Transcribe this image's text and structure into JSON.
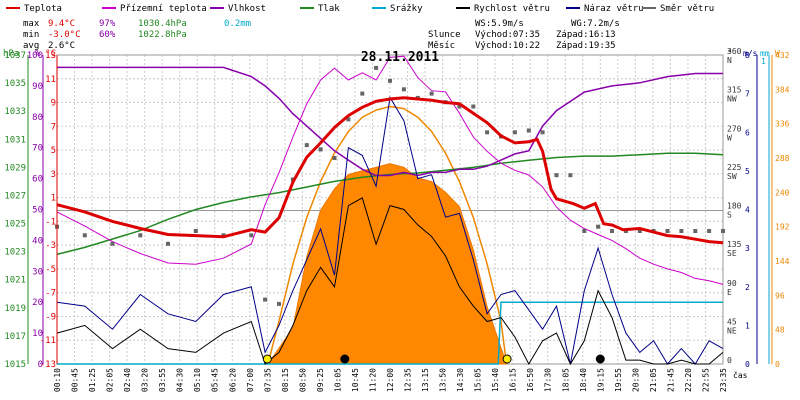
{
  "chart_data": {
    "type": "line",
    "title": "28.11.2011",
    "xlabel": "čas",
    "legend": [
      {
        "name": "Teplota",
        "color": "#dd0000"
      },
      {
        "name": "Přízemní teplota",
        "color": "#cc00cc"
      },
      {
        "name": "Vlhkost",
        "color": "#8800aa"
      },
      {
        "name": "Tlak",
        "color": "#228822"
      },
      {
        "name": "Srážky",
        "color": "#00aacc"
      },
      {
        "name": "Rychlost větru",
        "color": "#000000"
      },
      {
        "name": "Náraz větru",
        "color": "#000088"
      },
      {
        "name": "Směr větru",
        "color": "#666666"
      }
    ],
    "stats": {
      "max": {
        "label": "max",
        "temp": "9.4°C",
        "hum": "97%",
        "press": "1030.4hPa",
        "rain": "0.2mm"
      },
      "min": {
        "label": "min",
        "temp": "-3.0°C",
        "hum": "60%",
        "press": "1022.8hPa"
      },
      "avg": {
        "label": "avg",
        "temp": "2.6°C"
      }
    },
    "info": {
      "ws": "WS:5.9m/s",
      "wg": "WG:7.2m/s",
      "sun_label": "Slunce",
      "sunrise": "Východ:07:35",
      "sunset": "Západ:16:13",
      "moon_label": "Měsíc",
      "moonrise": "Východ:10:22",
      "moonset": "Západ:19:35"
    },
    "axes": {
      "hpa": {
        "label": "hPa",
        "ticks": [
          "1037",
          "1035",
          "1033",
          "1031",
          "1029",
          "1027",
          "1025",
          "1023",
          "1021",
          "1019",
          "1017",
          "1015"
        ]
      },
      "pct": {
        "label": "%",
        "ticks": [
          "100",
          "90",
          "80",
          "70",
          "60",
          "50",
          "40",
          "30",
          "20",
          "10",
          "0"
        ]
      },
      "celsius": {
        "label": "°C",
        "ticks": [
          "13",
          "11",
          "9",
          "7",
          "5",
          "3",
          "1",
          "-1",
          "-3",
          "-5",
          "-7",
          "-9",
          "-11",
          "-13"
        ]
      },
      "dir": {
        "label": "°",
        "ticks": [
          {
            "deg": "360",
            "name": "N"
          },
          {
            "deg": "315",
            "name": "NW"
          },
          {
            "deg": "270",
            "name": "W"
          },
          {
            "deg": "225",
            "name": "SW"
          },
          {
            "deg": "180",
            "name": "S"
          },
          {
            "deg": "135",
            "name": "SE"
          },
          {
            "deg": "90",
            "name": "E"
          },
          {
            "deg": "45",
            "name": "NE"
          },
          {
            "deg": "0",
            "name": ""
          }
        ]
      },
      "ms": {
        "label": "m/s",
        "ticks": [
          "8",
          "7",
          "6",
          "5",
          "4",
          "3",
          "2",
          "1",
          "0"
        ]
      },
      "mm": {
        "label": "mm",
        "ticks": [
          "1"
        ]
      },
      "w": {
        "label": "W",
        "ticks": [
          "432",
          "384",
          "336",
          "288",
          "240",
          "192",
          "144",
          "96",
          "48",
          "0"
        ]
      }
    },
    "x_labels": [
      "00:10",
      "00:45",
      "01:25",
      "02:05",
      "02:40",
      "03:20",
      "03:55",
      "04:30",
      "05:10",
      "05:45",
      "06:20",
      "07:00",
      "07:35",
      "08:15",
      "08:50",
      "09:25",
      "10:05",
      "10:45",
      "11:20",
      "12:00",
      "12:35",
      "13:15",
      "13:50",
      "14:30",
      "15:05",
      "15:40",
      "16:15",
      "16:50",
      "17:30",
      "18:05",
      "18:40",
      "19:15",
      "19:55",
      "20:30",
      "21:05",
      "21:45",
      "22:20",
      "22:55",
      "23:35"
    ],
    "series": [
      {
        "name": "Teplota",
        "unit": "°C",
        "x": [
          0,
          1,
          2,
          3,
          4,
          5,
          6,
          7,
          7.5,
          8,
          8.5,
          9,
          9.5,
          10,
          10.5,
          11,
          11.5,
          12,
          12.5,
          13,
          13.5,
          14,
          14.5,
          15,
          15.5,
          16,
          16.5,
          17,
          17.3,
          17.5,
          17.8,
          18,
          18.3,
          18.6,
          19,
          19.4,
          19.7,
          20,
          20.4,
          21,
          21.5,
          22,
          22.5,
          23,
          23.5,
          24
        ],
        "y": [
          0.4,
          -0.2,
          -1.0,
          -1.6,
          -2.1,
          -2.2,
          -2.3,
          -1.7,
          -1.9,
          -0.7,
          2.3,
          4.4,
          5.6,
          6.9,
          7.9,
          8.6,
          9.1,
          9.3,
          9.4,
          9.3,
          9.2,
          9.0,
          8.9,
          8.1,
          7.3,
          6.2,
          5.6,
          5.7,
          5.9,
          4.9,
          1.7,
          0.9,
          0.7,
          0.5,
          0.1,
          0.5,
          -1.2,
          -1.3,
          -1.7,
          -1.6,
          -1.9,
          -2.2,
          -2.3,
          -2.5,
          -2.7,
          -2.8
        ]
      },
      {
        "name": "Přízemní teplota",
        "unit": "°C",
        "x": [
          0,
          1,
          2,
          3,
          4,
          5,
          6,
          7,
          7.5,
          8,
          8.5,
          9,
          9.5,
          10,
          10.5,
          11,
          11.5,
          12,
          12.5,
          13,
          13.5,
          14,
          14.5,
          15,
          15.5,
          16,
          16.5,
          17,
          17.5,
          18,
          18.5,
          19,
          19.5,
          20,
          20.5,
          21,
          21.5,
          22,
          22.5,
          23,
          23.5,
          24
        ],
        "y": [
          -0.2,
          -1.4,
          -2.7,
          -3.7,
          -4.5,
          -4.6,
          -4.1,
          -2.9,
          0.4,
          3.1,
          6.1,
          8.9,
          10.9,
          11.9,
          10.9,
          11.5,
          10.9,
          12.8,
          12.9,
          11.1,
          10.0,
          9.9,
          8.1,
          6.1,
          4.9,
          3.9,
          3.3,
          2.9,
          1.9,
          0.2,
          -0.9,
          -1.6,
          -2.1,
          -2.6,
          -3.3,
          -4.1,
          -4.6,
          -5.0,
          -5.3,
          -5.8,
          -6.0,
          -6.3
        ]
      },
      {
        "name": "Vlhkost",
        "unit": "%",
        "x": [
          0,
          3,
          6,
          7,
          7.5,
          8,
          8.5,
          9,
          9.5,
          10,
          10.5,
          11,
          11.5,
          12,
          12.5,
          13,
          13.5,
          14,
          14.5,
          15,
          15.5,
          16,
          16.5,
          17,
          17.5,
          18,
          18.5,
          19,
          19.5,
          20,
          21,
          22,
          23,
          24
        ],
        "y": [
          96,
          96,
          96,
          93,
          90,
          86,
          81,
          77,
          73,
          69,
          66,
          63,
          61,
          61,
          62,
          61,
          62,
          62,
          63,
          63,
          64,
          66,
          68,
          69,
          77,
          82,
          85,
          88,
          89,
          90,
          91,
          93,
          94,
          94
        ]
      },
      {
        "name": "Tlak",
        "unit": "hPa",
        "x": [
          0,
          1,
          2,
          3,
          4,
          5,
          6,
          7,
          8,
          9,
          10,
          11,
          12,
          13,
          14,
          15,
          16,
          17,
          18,
          19,
          20,
          21,
          22,
          23,
          24
        ],
        "y": [
          1022.8,
          1023.3,
          1023.9,
          1024.5,
          1025.3,
          1026.0,
          1026.5,
          1026.9,
          1027.2,
          1027.6,
          1028.0,
          1028.3,
          1028.5,
          1028.6,
          1028.8,
          1029.0,
          1029.3,
          1029.5,
          1029.7,
          1029.8,
          1029.8,
          1029.9,
          1030.0,
          1030.0,
          1029.9
        ]
      },
      {
        "name": "Srážky",
        "unit": "mm",
        "x": [
          0,
          15.9,
          16.0,
          24
        ],
        "y": [
          0,
          0,
          0.2,
          0.2
        ]
      },
      {
        "name": "Rychlost větru",
        "unit": "m/s",
        "x": [
          0,
          1,
          2,
          3,
          4,
          5,
          6,
          7,
          7.5,
          8,
          8.5,
          9,
          9.5,
          10,
          10.5,
          11,
          11.5,
          12,
          12.5,
          13,
          13.5,
          14,
          14.5,
          15,
          15.5,
          16,
          16.5,
          17,
          17.5,
          18,
          18.5,
          19,
          19.5,
          20,
          20.5,
          21,
          21.5,
          22,
          22.5,
          23,
          23.5,
          24
        ],
        "y": [
          0.8,
          1.0,
          0.4,
          0.9,
          0.4,
          0.3,
          0.8,
          1.1,
          0.0,
          0.3,
          1.0,
          1.9,
          2.5,
          2.0,
          4.1,
          4.3,
          3.1,
          4.1,
          4.0,
          3.6,
          3.3,
          2.8,
          2.0,
          1.5,
          1.1,
          1.2,
          0.7,
          0.0,
          0.6,
          0.8,
          0.0,
          0.6,
          1.9,
          1.2,
          0.1,
          0.1,
          0.0,
          0.0,
          0.1,
          0.0,
          0.0,
          0.3
        ]
      },
      {
        "name": "Náraz větru",
        "unit": "m/s",
        "x": [
          0,
          1,
          2,
          3,
          4,
          5,
          6,
          7,
          7.5,
          8,
          8.5,
          9,
          9.5,
          10,
          10.5,
          11,
          11.5,
          12,
          12.5,
          13,
          13.5,
          14,
          14.5,
          15,
          15.5,
          16,
          16.5,
          17,
          17.5,
          18,
          18.5,
          19,
          19.5,
          20,
          20.5,
          21,
          21.5,
          22,
          22.5,
          23,
          23.5,
          24
        ],
        "y": [
          1.6,
          1.5,
          0.9,
          1.8,
          1.3,
          1.1,
          1.8,
          2.0,
          0.3,
          1.0,
          1.9,
          2.7,
          3.5,
          2.3,
          5.6,
          5.4,
          4.6,
          6.9,
          6.3,
          4.8,
          4.9,
          3.8,
          3.9,
          2.7,
          1.3,
          1.8,
          1.9,
          1.4,
          0.9,
          1.5,
          0.0,
          1.9,
          3.0,
          1.8,
          0.8,
          0.3,
          0.6,
          0.0,
          0.4,
          0.0,
          0.6,
          0.4
        ]
      },
      {
        "name": "Směr větru",
        "unit": "°",
        "x": [
          0,
          1,
          2,
          3,
          4,
          5,
          6,
          7,
          7.5,
          8,
          8.5,
          9,
          9.5,
          10,
          10.5,
          11,
          11.5,
          12,
          12.5,
          13,
          13.5,
          14,
          14.5,
          15,
          15.5,
          16,
          16.5,
          17,
          17.5,
          18,
          18.5,
          19,
          19.5,
          20,
          20.5,
          21,
          21.5,
          22,
          22.5,
          23,
          23.5,
          24
        ],
        "y": [
          160,
          150,
          140,
          150,
          140,
          155,
          150,
          150,
          75,
          70,
          215,
          255,
          250,
          240,
          285,
          315,
          345,
          330,
          320,
          310,
          315,
          305,
          300,
          300,
          270,
          265,
          270,
          272,
          270,
          220,
          220,
          155,
          160,
          155,
          155,
          155,
          155,
          155,
          155,
          155,
          155,
          155
        ]
      },
      {
        "name": "Sluneční záření",
        "unit": "W",
        "x": [
          7.6,
          8.5,
          9,
          9.5,
          10,
          10.5,
          11,
          11.5,
          12,
          12.5,
          13,
          13.5,
          14,
          14.5,
          15,
          15.5,
          16.2
        ],
        "y": [
          0,
          50,
          150,
          215,
          245,
          265,
          270,
          275,
          280,
          275,
          260,
          255,
          240,
          220,
          160,
          80,
          0
        ]
      },
      {
        "name": "Teoretické záření",
        "unit": "W",
        "x": [
          7.6,
          8,
          8.5,
          9,
          9.5,
          10,
          10.5,
          11,
          11.5,
          12,
          12.5,
          13,
          13.5,
          14,
          14.5,
          15,
          15.5,
          16,
          16.2
        ],
        "y": [
          0,
          60,
          140,
          205,
          255,
          295,
          325,
          345,
          355,
          360,
          357,
          345,
          325,
          295,
          255,
          205,
          140,
          60,
          0
        ]
      }
    ],
    "markers": [
      {
        "name": "Východ slunce",
        "time": 7.58,
        "color": "#ffee00"
      },
      {
        "name": "Západ slunce",
        "time": 16.22,
        "color": "#ffee00"
      },
      {
        "name": "Východ měsíce",
        "time": 10.37,
        "color": "#000000"
      },
      {
        "name": "Západ měsíce",
        "time": 19.58,
        "color": "#000000"
      }
    ],
    "grid": true
  }
}
